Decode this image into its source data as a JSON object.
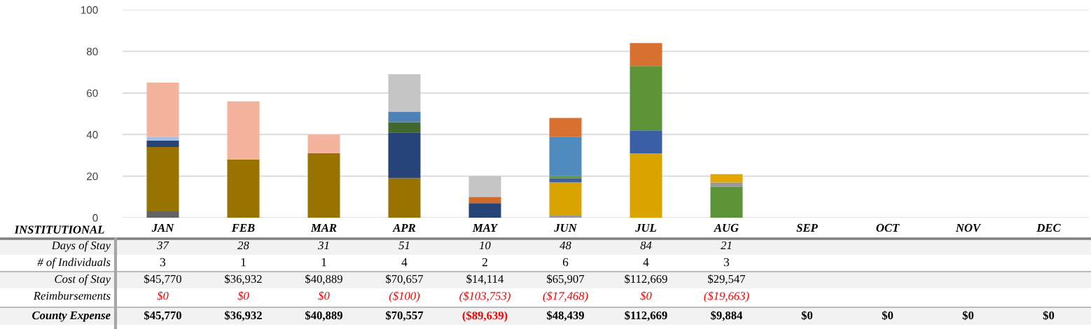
{
  "chart_data": {
    "type": "bar",
    "stacked": true,
    "xlabel": "INSTITUTIONAL",
    "categories": [
      "JAN",
      "FEB",
      "MAR",
      "APR",
      "MAY",
      "JUN",
      "JUL",
      "AUG",
      "SEP",
      "OCT",
      "NOV",
      "DEC"
    ],
    "series": [
      {
        "values": [
          3,
          28,
          31,
          19,
          7,
          1,
          31,
          15,
          null,
          null,
          null,
          null
        ],
        "colors": [
          "#636363",
          "#997300",
          "#997300",
          "#997300",
          "#264478",
          "#999999",
          "#d9a400",
          "#5e9438",
          null,
          null,
          null,
          null
        ]
      },
      {
        "values": [
          31,
          28,
          9,
          22,
          3,
          16,
          11,
          2,
          null,
          null,
          null,
          null
        ],
        "colors": [
          "#997300",
          "#f4b39c",
          "#f4b39c",
          "#264478",
          "#d0692a",
          "#d9a400",
          "#3a5fa6",
          "#999999",
          null,
          null,
          null,
          null
        ]
      },
      {
        "values": [
          3,
          null,
          null,
          5,
          10,
          2,
          31,
          4,
          null,
          null,
          null,
          null
        ],
        "colors": [
          "#264478",
          null,
          null,
          "#43682b",
          "#c5c5c5",
          "#3a5fa6",
          "#5e9438",
          "#e3a800",
          null,
          null,
          null,
          null
        ]
      },
      {
        "values": [
          2,
          null,
          null,
          5,
          null,
          1,
          11,
          null,
          null,
          null,
          null,
          null
        ],
        "colors": [
          "#a5c0e5",
          null,
          null,
          "#4e81b4",
          null,
          "#5e9438",
          "#d87030",
          null,
          null,
          null,
          null,
          null
        ]
      },
      {
        "values": [
          26,
          null,
          null,
          18,
          null,
          19,
          null,
          null,
          null,
          null,
          null,
          null
        ],
        "colors": [
          "#f4b39c",
          null,
          null,
          "#c5c5c5",
          null,
          "#508bc0",
          null,
          null,
          null,
          null,
          null,
          null
        ]
      },
      {
        "values": [
          null,
          null,
          null,
          null,
          null,
          9,
          null,
          null,
          null,
          null,
          null,
          null
        ],
        "colors": [
          null,
          null,
          null,
          null,
          null,
          "#d87030",
          null,
          null,
          null,
          null,
          null,
          null
        ]
      }
    ],
    "ylim": [
      0,
      100
    ],
    "yticks": [
      0,
      20,
      40,
      60,
      80,
      100
    ],
    "grid": "y",
    "legend": false,
    "annotations": [
      "Days of Stay",
      "37",
      "28",
      "31",
      "51",
      "10",
      "48",
      "84",
      "21",
      "# of Individuals",
      "3",
      "1",
      "1",
      "4",
      "2",
      "6",
      "4",
      "3",
      "Cost of Stay",
      "$45,770",
      "$36,932",
      "$40,889",
      "$70,657",
      "$14,114",
      "$65,907",
      "$112,669",
      "$29,547",
      "Reimbursements",
      "$0",
      "$0",
      "$0",
      "($100)",
      "($103,753)",
      "($17,468)",
      "$0",
      "($19,663)",
      "County Expense",
      "$45,770",
      "$36,932",
      "$40,889",
      "$70,557",
      "($89,639)",
      "$48,439",
      "$112,669",
      "$9,884",
      "$0",
      "$0",
      "$0",
      "$0"
    ]
  }
}
